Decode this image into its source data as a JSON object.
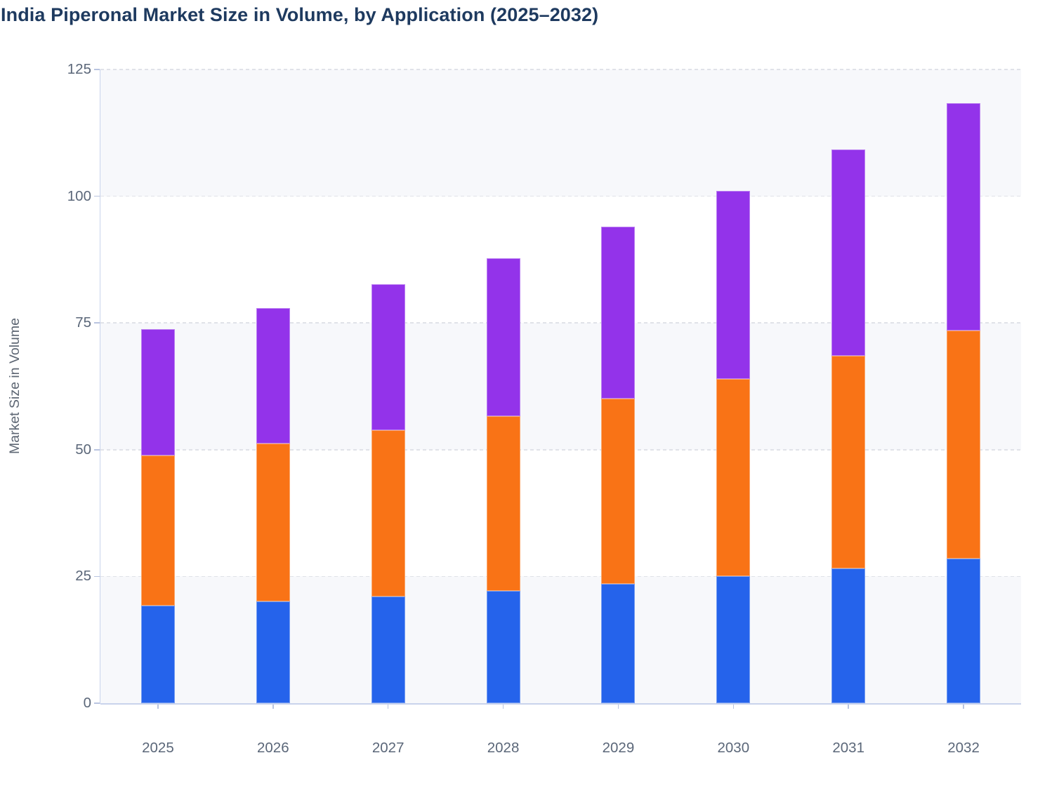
{
  "title": "India Piperonal Market Size in Volume, by Application (2025–2032)",
  "chart_data": {
    "type": "bar",
    "stacked": true,
    "title": "India Piperonal Market Size in Volume, by Application (2025–2032)",
    "xlabel": "",
    "ylabel": "Market Size in Volume",
    "categories": [
      "2025",
      "2026",
      "2027",
      "2028",
      "2029",
      "2030",
      "2031",
      "2032"
    ],
    "series": [
      {
        "name": "blue-segment",
        "color": "#2563eb",
        "values": [
          19.3,
          20.1,
          21.1,
          22.2,
          23.5,
          25.0,
          26.6,
          28.5
        ]
      },
      {
        "name": "orange-segment",
        "color": "#f97316",
        "values": [
          29.5,
          31.1,
          32.7,
          34.4,
          36.6,
          39.0,
          41.9,
          45.0
        ]
      },
      {
        "name": "purple-segment",
        "color": "#9333ea",
        "values": [
          25.0,
          26.7,
          28.8,
          31.2,
          33.9,
          37.1,
          40.7,
          44.9
        ]
      }
    ],
    "stack_totals": [
      73.8,
      77.9,
      82.6,
      87.8,
      94.0,
      101.1,
      109.2,
      118.4
    ],
    "ylim": [
      0,
      125
    ],
    "yticks": [
      0,
      25,
      50,
      75,
      100,
      125
    ],
    "grid": "horizontal-dashed",
    "legend": "none",
    "plot_background": "alternating horizontal bands"
  },
  "colors": {
    "title_text": "#1e3a5f",
    "axis_text": "#5b6779",
    "axis_line": "#c9d3ec",
    "gridline": "#e0e2e8",
    "band_fill": "#f7f8fb",
    "bar_blue": "#2563eb",
    "bar_orange": "#f97316",
    "bar_purple": "#9333ea"
  }
}
